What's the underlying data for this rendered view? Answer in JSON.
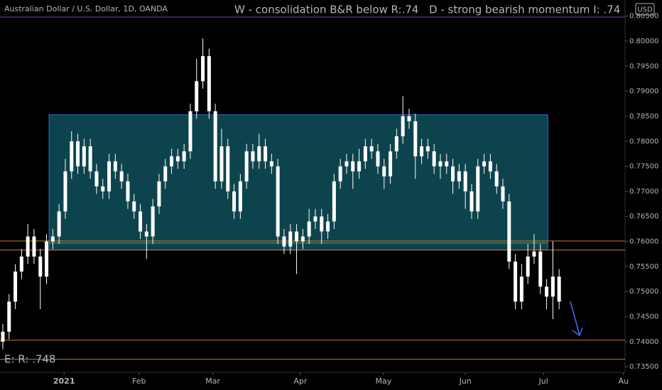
{
  "chart_data": {
    "type": "candlestick",
    "title": "Australian Dollar / U.S. Dollar, 1D, OANDA",
    "currency": "USD",
    "annotations": [
      {
        "text": "W - consolidation  B&R below R:.74",
        "color": "#7ecb6f"
      },
      {
        "text": "D - strong bearish momentum I: .74",
        "color": "#f0524f"
      },
      {
        "text": "E: R: .748",
        "color": "#8bc34a"
      }
    ],
    "color": "#ffffff",
    "open": [
      0.74,
      0.742,
      0.748,
      0.754,
      0.757,
      0.761,
      0.757,
      0.753,
      0.76,
      0.761,
      0.766,
      0.774,
      0.78,
      0.775,
      0.779,
      0.774,
      0.771,
      0.77,
      0.776,
      0.774,
      0.772,
      0.768,
      0.766,
      0.762,
      0.761,
      0.767,
      0.772,
      0.775,
      0.777,
      0.776,
      0.778,
      0.786,
      0.792,
      0.797,
      0.786,
      0.772,
      0.779,
      0.77,
      0.766,
      0.772,
      0.778,
      0.776,
      0.779,
      0.776,
      0.775,
      0.761,
      0.759,
      0.762,
      0.76,
      0.761,
      0.764,
      0.765,
      0.762,
      0.764,
      0.772,
      0.775,
      0.776,
      0.774,
      0.776,
      0.779,
      0.778,
      0.775,
      0.773,
      0.778,
      0.781,
      0.785,
      0.784,
      0.777,
      0.779,
      0.778,
      0.775,
      0.776,
      0.775,
      0.772,
      0.774,
      0.77,
      0.766,
      0.775,
      0.776,
      0.774,
      0.771,
      0.768,
      0.756,
      0.748,
      0.753,
      0.757,
      0.758,
      0.751,
      0.749,
      0.753
    ],
    "high": [
      0.7435,
      0.7495,
      0.7555,
      0.7585,
      0.7635,
      0.7625,
      0.7585,
      0.7615,
      0.7625,
      0.7675,
      0.7765,
      0.782,
      0.7815,
      0.7805,
      0.7805,
      0.7755,
      0.7725,
      0.7775,
      0.7775,
      0.7755,
      0.7735,
      0.7695,
      0.7675,
      0.7635,
      0.7685,
      0.7735,
      0.7765,
      0.7785,
      0.7785,
      0.7795,
      0.7875,
      0.7965,
      0.8005,
      0.7985,
      0.7875,
      0.7825,
      0.7805,
      0.7715,
      0.7735,
      0.7795,
      0.7795,
      0.7815,
      0.7805,
      0.7775,
      0.7765,
      0.7625,
      0.7635,
      0.7635,
      0.7625,
      0.7665,
      0.7665,
      0.7665,
      0.7655,
      0.7735,
      0.7765,
      0.7775,
      0.7775,
      0.7785,
      0.7805,
      0.7805,
      0.7795,
      0.7765,
      0.7795,
      0.7825,
      0.789,
      0.7865,
      0.7855,
      0.7805,
      0.7805,
      0.7795,
      0.7775,
      0.7775,
      0.7765,
      0.7755,
      0.7755,
      0.7715,
      0.7765,
      0.7775,
      0.7775,
      0.7755,
      0.7725,
      0.7695,
      0.7575,
      0.7555,
      0.7595,
      0.7615,
      0.7595,
      0.7525,
      0.76,
      0.7545
    ],
    "low": [
      0.7385,
      0.7405,
      0.7465,
      0.7525,
      0.7555,
      0.7555,
      0.7465,
      0.7515,
      0.7585,
      0.7595,
      0.7645,
      0.7725,
      0.7735,
      0.7735,
      0.7725,
      0.7695,
      0.7685,
      0.7685,
      0.7725,
      0.7705,
      0.7665,
      0.7645,
      0.7605,
      0.7565,
      0.7595,
      0.7655,
      0.7705,
      0.7735,
      0.7745,
      0.7745,
      0.7765,
      0.7845,
      0.7905,
      0.7845,
      0.7705,
      0.7705,
      0.7685,
      0.7645,
      0.7645,
      0.7705,
      0.7745,
      0.7745,
      0.7745,
      0.7735,
      0.7595,
      0.7575,
      0.7575,
      0.7535,
      0.7585,
      0.7595,
      0.7625,
      0.7595,
      0.7605,
      0.7625,
      0.7705,
      0.7735,
      0.7705,
      0.7725,
      0.7745,
      0.7765,
      0.7735,
      0.7705,
      0.7715,
      0.7765,
      0.7795,
      0.7825,
      0.7725,
      0.7755,
      0.7765,
      0.7735,
      0.7725,
      0.7735,
      0.7695,
      0.7705,
      0.7665,
      0.7645,
      0.7645,
      0.7735,
      0.7725,
      0.7695,
      0.7665,
      0.7545,
      0.7465,
      0.7465,
      0.7515,
      0.7555,
      0.7495,
      0.7465,
      0.7445,
      0.7465
    ],
    "close": [
      0.742,
      0.748,
      0.754,
      0.757,
      0.761,
      0.757,
      0.753,
      0.76,
      0.761,
      0.766,
      0.774,
      0.78,
      0.775,
      0.779,
      0.774,
      0.771,
      0.77,
      0.776,
      0.774,
      0.772,
      0.768,
      0.766,
      0.762,
      0.761,
      0.767,
      0.772,
      0.775,
      0.777,
      0.776,
      0.778,
      0.786,
      0.792,
      0.797,
      0.786,
      0.772,
      0.779,
      0.77,
      0.766,
      0.772,
      0.778,
      0.776,
      0.779,
      0.776,
      0.775,
      0.761,
      0.759,
      0.762,
      0.76,
      0.761,
      0.764,
      0.765,
      0.762,
      0.764,
      0.772,
      0.775,
      0.776,
      0.774,
      0.776,
      0.779,
      0.778,
      0.775,
      0.773,
      0.778,
      0.781,
      0.785,
      0.784,
      0.777,
      0.779,
      0.778,
      0.775,
      0.776,
      0.775,
      0.772,
      0.774,
      0.77,
      0.766,
      0.775,
      0.776,
      0.774,
      0.771,
      0.768,
      0.756,
      0.748,
      0.753,
      0.757,
      0.758,
      0.751,
      0.749,
      0.753,
      0.748
    ],
    "xlim": [
      -0.45,
      99.55
    ],
    "xticks": [
      {
        "value": 9.8,
        "label": "2021"
      },
      {
        "value": 21.8,
        "label": "Feb"
      },
      {
        "value": 33.6,
        "label": "Mar"
      },
      {
        "value": 47.6,
        "label": "Apr"
      },
      {
        "value": 60.9,
        "label": "May"
      },
      {
        "value": 74,
        "label": "Jun"
      },
      {
        "value": 86.5,
        "label": "Jul"
      },
      {
        "value": 99.3,
        "label": "Au"
      }
    ],
    "ylim": [
      0.7339,
      0.8082
    ],
    "yticks": [
      {
        "value": 0.735,
        "label": "0.73500"
      },
      {
        "value": 0.74,
        "label": "0.74000"
      },
      {
        "value": 0.745,
        "label": "0.74500"
      },
      {
        "value": 0.75,
        "label": "0.75000"
      },
      {
        "value": 0.755,
        "label": "0.75500"
      },
      {
        "value": 0.76,
        "label": "0.76000"
      },
      {
        "value": 0.765,
        "label": "0.76500"
      },
      {
        "value": 0.77,
        "label": "0.77000"
      },
      {
        "value": 0.775,
        "label": "0.77500"
      },
      {
        "value": 0.78,
        "label": "0.78000"
      },
      {
        "value": 0.785,
        "label": "0.78500"
      },
      {
        "value": 0.79,
        "label": "0.79000"
      },
      {
        "value": 0.795,
        "label": "0.79500"
      },
      {
        "value": 0.8,
        "label": "0.80000"
      },
      {
        "value": 0.805,
        "label": "0.80500"
      }
    ],
    "zone": {
      "x": [
        7.4,
        87.2
      ],
      "y": [
        0.7583,
        0.7853
      ],
      "midline": 0.7597,
      "color": "#0f4f5a",
      "border": "#2a6fd6",
      "midline_color": "#7a9a3a"
    },
    "levels": [
      {
        "value": 0.8048,
        "color": "#7b3fa0"
      },
      {
        "value": 0.7601,
        "color": "#c77b2e"
      },
      {
        "value": 0.7583,
        "color": "#c77b2e"
      },
      {
        "value": 0.7403,
        "color": "#c77b2e"
      },
      {
        "value": 0.7365,
        "color": "#c77b2e"
      }
    ]
  }
}
